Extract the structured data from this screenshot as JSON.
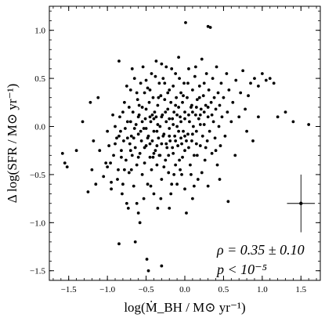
{
  "chart_data": {
    "type": "scatter",
    "xlabel": "log(Ṁ_BH / M⊙ yr⁻¹)",
    "ylabel": "Δ log(SFR / M⊙ yr⁻¹)",
    "xlim": [
      -1.75,
      1.75
    ],
    "ylim": [
      -1.6,
      1.25
    ],
    "xticks": [
      -1.5,
      -1.0,
      -0.5,
      0.0,
      0.5,
      1.0,
      1.5
    ],
    "xtick_labels": [
      "−1.5",
      "−1.0",
      "−0.5",
      "0.0",
      "0.5",
      "1.0",
      "1.5"
    ],
    "yticks": [
      -1.5,
      -1.0,
      -0.5,
      0.0,
      0.5,
      1.0
    ],
    "ytick_labels": [
      "−1.5",
      "−1.0",
      "−0.5",
      "0.0",
      "0.5",
      "1.0"
    ],
    "grid": false,
    "annotations": {
      "rho": "ρ = 0.35 ± 0.10",
      "p": "p < 10⁻⁵"
    },
    "error_bar": {
      "x": 1.5,
      "y": -0.8,
      "xerr": 0.18,
      "yerr": 0.3
    },
    "points": [
      [
        -1.58,
        -0.28
      ],
      [
        -1.55,
        -0.38
      ],
      [
        -1.52,
        -0.42
      ],
      [
        -1.4,
        -0.25
      ],
      [
        -1.32,
        0.05
      ],
      [
        -1.25,
        -0.68
      ],
      [
        -1.22,
        0.25
      ],
      [
        -1.18,
        -0.15
      ],
      [
        -1.15,
        -0.6
      ],
      [
        -1.12,
        0.3
      ],
      [
        -1.05,
        -0.52
      ],
      [
        -1.02,
        -0.38
      ],
      [
        -1.0,
        -0.05
      ],
      [
        -0.98,
        -0.2
      ],
      [
        -0.95,
        -0.58
      ],
      [
        -0.92,
        -0.3
      ],
      [
        -0.9,
        0.0
      ],
      [
        -0.88,
        -0.12
      ],
      [
        -0.86,
        -0.45
      ],
      [
        -0.85,
        0.68
      ],
      [
        -0.84,
        0.1
      ],
      [
        -0.82,
        -0.25
      ],
      [
        -0.8,
        -0.6
      ],
      [
        -0.79,
        -0.15
      ],
      [
        -0.78,
        0.25
      ],
      [
        -0.76,
        -0.35
      ],
      [
        -0.75,
        -0.8
      ],
      [
        -0.74,
        0.05
      ],
      [
        -0.72,
        -0.48
      ],
      [
        -0.71,
        -0.18
      ],
      [
        -0.7,
        0.38
      ],
      [
        -0.69,
        -0.1
      ],
      [
        -0.68,
        -0.3
      ],
      [
        -0.67,
        0.15
      ],
      [
        -0.66,
        -0.62
      ],
      [
        -0.65,
        0.5
      ],
      [
        -0.64,
        -0.22
      ],
      [
        -0.63,
        0.02
      ],
      [
        -0.62,
        -0.4
      ],
      [
        -0.61,
        0.28
      ],
      [
        -0.6,
        -0.08
      ],
      [
        -0.6,
        -0.9
      ],
      [
        -0.59,
        0.12
      ],
      [
        -0.58,
        -0.28
      ],
      [
        -0.57,
        0.45
      ],
      [
        -0.56,
        -0.15
      ],
      [
        -0.55,
        0.2
      ],
      [
        -0.55,
        -0.5
      ],
      [
        -0.54,
        0.62
      ],
      [
        -0.53,
        -0.02
      ],
      [
        -0.52,
        0.35
      ],
      [
        -0.52,
        -0.38
      ],
      [
        -0.51,
        0.08
      ],
      [
        -0.5,
        -0.2
      ],
      [
        -0.5,
        0.18
      ],
      [
        -0.49,
        -1.38
      ],
      [
        -0.48,
        0.4
      ],
      [
        -0.48,
        -0.6
      ],
      [
        -0.47,
        -0.1
      ],
      [
        -0.46,
        0.25
      ],
      [
        -0.45,
        -0.32
      ],
      [
        -0.44,
        0.05
      ],
      [
        -0.43,
        0.55
      ],
      [
        -0.43,
        -0.45
      ],
      [
        -0.42,
        -0.15
      ],
      [
        -0.41,
        0.3
      ],
      [
        -0.4,
        -0.05
      ],
      [
        -0.4,
        -0.7
      ],
      [
        -0.39,
        0.15
      ],
      [
        -0.38,
        -0.25
      ],
      [
        -0.37,
        0.68
      ],
      [
        -0.37,
        0.1
      ],
      [
        -0.36,
        -0.4
      ],
      [
        -0.35,
        0.22
      ],
      [
        -0.34,
        -0.12
      ],
      [
        -0.33,
        0.45
      ],
      [
        -0.33,
        -0.3
      ],
      [
        -0.32,
        0.0
      ],
      [
        -0.31,
        0.32
      ],
      [
        -0.3,
        -0.55
      ],
      [
        -0.3,
        -0.18
      ],
      [
        -0.29,
        0.12
      ],
      [
        -0.28,
        0.5
      ],
      [
        -0.27,
        -0.08
      ],
      [
        -0.26,
        0.28
      ],
      [
        -0.25,
        -0.35
      ],
      [
        -0.24,
        0.05
      ],
      [
        -0.24,
        0.62
      ],
      [
        -0.23,
        -0.22
      ],
      [
        -0.22,
        0.18
      ],
      [
        -0.21,
        -0.48
      ],
      [
        -0.2,
        0.38
      ],
      [
        -0.2,
        -0.02
      ],
      [
        -0.19,
        -0.15
      ],
      [
        -0.18,
        0.25
      ],
      [
        -0.17,
        -0.6
      ],
      [
        -0.16,
        0.08
      ],
      [
        -0.15,
        0.42
      ],
      [
        -0.15,
        -0.28
      ],
      [
        -0.14,
        0.15
      ],
      [
        -0.13,
        -0.1
      ],
      [
        -0.12,
        0.55
      ],
      [
        -0.12,
        -0.4
      ],
      [
        -0.11,
        0.3
      ],
      [
        -0.1,
        0.0
      ],
      [
        -0.09,
        -0.2
      ],
      [
        -0.08,
        0.2
      ],
      [
        -0.08,
        0.72
      ],
      [
        -0.07,
        -0.35
      ],
      [
        -0.06,
        0.1
      ],
      [
        -0.05,
        0.35
      ],
      [
        -0.05,
        -0.12
      ],
      [
        -0.04,
        -0.5
      ],
      [
        -0.03,
        0.25
      ],
      [
        -0.02,
        -0.05
      ],
      [
        -0.01,
        0.45
      ],
      [
        0.0,
        0.15
      ],
      [
        0.0,
        -0.25
      ],
      [
        0.01,
        1.08
      ],
      [
        0.02,
        -0.9
      ],
      [
        0.03,
        0.3
      ],
      [
        0.04,
        -0.08
      ],
      [
        0.05,
        0.6
      ],
      [
        0.06,
        0.05
      ],
      [
        0.07,
        -0.4
      ],
      [
        0.08,
        0.2
      ],
      [
        0.09,
        -0.15
      ],
      [
        0.1,
        0.38
      ],
      [
        0.11,
        0.0
      ],
      [
        0.12,
        -0.3
      ],
      [
        0.13,
        0.52
      ],
      [
        0.14,
        0.12
      ],
      [
        0.15,
        -0.05
      ],
      [
        0.16,
        0.28
      ],
      [
        0.17,
        -0.55
      ],
      [
        0.18,
        0.08
      ],
      [
        0.19,
        0.42
      ],
      [
        0.2,
        -0.2
      ],
      [
        0.21,
        0.18
      ],
      [
        0.22,
        0.7
      ],
      [
        0.23,
        -0.1
      ],
      [
        0.24,
        0.32
      ],
      [
        0.25,
        0.02
      ],
      [
        0.26,
        -0.35
      ],
      [
        0.27,
        0.22
      ],
      [
        0.28,
        0.55
      ],
      [
        0.29,
        -0.15
      ],
      [
        0.3,
        1.04
      ],
      [
        0.3,
        0.1
      ],
      [
        0.31,
        0.38
      ],
      [
        0.32,
        -0.05
      ],
      [
        0.33,
        1.03
      ],
      [
        0.34,
        0.25
      ],
      [
        0.35,
        -0.28
      ],
      [
        0.36,
        0.5
      ],
      [
        0.37,
        0.05
      ],
      [
        0.38,
        0.3
      ],
      [
        0.39,
        -0.12
      ],
      [
        0.4,
        0.18
      ],
      [
        0.41,
        0.62
      ],
      [
        0.42,
        -0.4
      ],
      [
        0.43,
        0.35
      ],
      [
        0.44,
        0.0
      ],
      [
        0.45,
        0.22
      ],
      [
        0.46,
        -0.2
      ],
      [
        0.47,
        0.45
      ],
      [
        0.48,
        0.1
      ],
      [
        0.5,
        0.3
      ],
      [
        0.52,
        -0.1
      ],
      [
        0.54,
        0.55
      ],
      [
        0.55,
        0.15
      ],
      [
        0.56,
        -0.78
      ],
      [
        0.57,
        0.38
      ],
      [
        0.6,
        0.05
      ],
      [
        0.62,
        0.25
      ],
      [
        0.65,
        -0.3
      ],
      [
        0.66,
        0.48
      ],
      [
        0.7,
        0.1
      ],
      [
        0.72,
        0.35
      ],
      [
        0.75,
        0.58
      ],
      [
        0.8,
        -0.05
      ],
      [
        0.82,
        0.32
      ],
      [
        0.85,
        0.45
      ],
      [
        0.9,
        0.5
      ],
      [
        0.95,
        0.42
      ],
      [
        1.0,
        0.55
      ],
      [
        1.05,
        0.48
      ],
      [
        1.1,
        0.5
      ],
      [
        1.15,
        0.45
      ],
      [
        1.2,
        0.1
      ],
      [
        1.3,
        0.15
      ],
      [
        1.4,
        0.05
      ],
      [
        1.6,
        0.02
      ],
      [
        0.95,
        0.1
      ],
      [
        0.88,
        -0.15
      ],
      [
        0.78,
        0.18
      ],
      [
        -1.1,
        -0.25
      ],
      [
        -0.96,
        -0.38
      ],
      [
        -0.87,
        -0.55
      ],
      [
        -0.93,
        0.12
      ],
      [
        -0.83,
        -0.05
      ],
      [
        -0.81,
        -0.7
      ],
      [
        -0.77,
        -0.02
      ],
      [
        -0.73,
        -0.85
      ],
      [
        -0.69,
        -0.45
      ],
      [
        -0.64,
        -1.2
      ],
      [
        -0.58,
        -1.0
      ],
      [
        -0.53,
        -0.75
      ],
      [
        -0.47,
        -1.5
      ],
      [
        -0.44,
        -0.62
      ],
      [
        -0.41,
        -0.32
      ],
      [
        -0.36,
        -0.05
      ],
      [
        -0.31,
        -0.75
      ],
      [
        -0.27,
        -0.42
      ],
      [
        -0.21,
        -0.3
      ],
      [
        -0.18,
        -0.7
      ],
      [
        -0.14,
        -0.5
      ],
      [
        -0.1,
        -0.6
      ],
      [
        -0.06,
        -0.45
      ],
      [
        -0.03,
        -0.32
      ],
      [
        0.02,
        -0.15
      ],
      [
        0.08,
        -0.5
      ],
      [
        0.12,
        -0.62
      ],
      [
        0.16,
        -0.3
      ],
      [
        0.22,
        -0.48
      ],
      [
        0.27,
        -0.22
      ],
      [
        -0.75,
        0.42
      ],
      [
        -0.72,
        0.2
      ],
      [
        -0.68,
        0.6
      ],
      [
        -0.62,
        0.35
      ],
      [
        -0.59,
        0.22
      ],
      [
        -0.5,
        0.48
      ],
      [
        -0.45,
        0.38
      ],
      [
        -0.42,
        0.12
      ],
      [
        -0.38,
        0.52
      ],
      [
        -0.34,
        0.3
      ],
      [
        -0.3,
        0.65
      ],
      [
        -0.26,
        0.45
      ],
      [
        -0.22,
        0.35
      ],
      [
        -0.17,
        0.6
      ],
      [
        -0.12,
        0.22
      ],
      [
        -0.07,
        0.5
      ],
      [
        -0.02,
        0.32
      ],
      [
        0.04,
        0.45
      ],
      [
        0.09,
        0.22
      ],
      [
        0.14,
        0.62
      ],
      [
        0.19,
        0.3
      ],
      [
        0.25,
        0.45
      ],
      [
        -1.0,
        -0.42
      ],
      [
        -0.9,
        -0.18
      ],
      [
        -0.82,
        -0.32
      ],
      [
        -0.78,
        -0.45
      ],
      [
        -0.7,
        -0.25
      ],
      [
        -0.66,
        -0.12
      ],
      [
        -0.6,
        -0.32
      ],
      [
        -0.57,
        -0.05
      ],
      [
        -0.52,
        -0.22
      ],
      [
        -0.48,
        -0.12
      ],
      [
        -0.45,
        -0.18
      ],
      [
        -0.4,
        -0.28
      ],
      [
        -0.36,
        -0.2
      ],
      [
        -0.32,
        -0.3
      ],
      [
        -0.28,
        -0.1
      ],
      [
        -0.24,
        -0.18
      ],
      [
        -0.2,
        -0.1
      ],
      [
        -0.16,
        -0.22
      ],
      [
        -0.12,
        -0.15
      ],
      [
        -0.08,
        -0.05
      ],
      [
        -0.04,
        -0.18
      ],
      [
        0.0,
        -0.1
      ],
      [
        0.05,
        -0.22
      ],
      [
        0.1,
        -0.08
      ],
      [
        0.15,
        -0.18
      ],
      [
        0.2,
        0.02
      ],
      [
        -0.85,
        -0.1
      ],
      [
        -0.8,
        0.15
      ],
      [
        -0.74,
        -0.12
      ],
      [
        -0.7,
        0.05
      ],
      [
        -0.65,
        -0.02
      ],
      [
        -0.6,
        0.1
      ],
      [
        -0.55,
        0.05
      ],
      [
        -0.5,
        -0.02
      ],
      [
        -0.45,
        0.1
      ],
      [
        -0.4,
        0.08
      ],
      [
        -0.35,
        0.02
      ],
      [
        -0.3,
        0.1
      ],
      [
        -0.25,
        0.15
      ],
      [
        -0.2,
        0.08
      ],
      [
        -0.15,
        0.02
      ],
      [
        -0.1,
        0.12
      ],
      [
        -0.05,
        0.05
      ],
      [
        0.0,
        0.08
      ],
      [
        0.05,
        0.12
      ],
      [
        0.1,
        0.15
      ],
      [
        0.15,
        0.2
      ],
      [
        0.2,
        0.12
      ],
      [
        0.25,
        0.15
      ],
      [
        0.3,
        0.2
      ],
      [
        0.35,
        0.12
      ],
      [
        0.4,
        -0.25
      ],
      [
        -1.2,
        -0.45
      ],
      [
        -0.95,
        -0.65
      ],
      [
        -0.62,
        -0.8
      ],
      [
        -0.35,
        -0.85
      ],
      [
        -0.2,
        -0.85
      ],
      [
        0.0,
        -0.65
      ],
      [
        0.1,
        -0.75
      ],
      [
        0.3,
        -0.62
      ],
      [
        0.45,
        -0.55
      ],
      [
        -0.3,
        -1.45
      ],
      [
        -0.85,
        -1.22
      ]
    ]
  }
}
